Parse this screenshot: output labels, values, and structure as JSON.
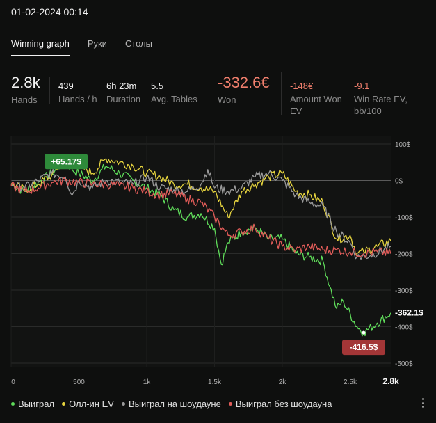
{
  "header": {
    "datetime": "01-02-2024 00:14"
  },
  "tabs": [
    {
      "label": "Winning graph",
      "active": true
    },
    {
      "label": "Руки",
      "active": false
    },
    {
      "label": "Столы",
      "active": false
    }
  ],
  "stats": {
    "hands": {
      "value": "2.8k",
      "label": "Hands"
    },
    "hands_per_hour": {
      "value": "439",
      "label": "Hands / h"
    },
    "duration": {
      "value": "6h 23m",
      "label": "Duration"
    },
    "avg_tables": {
      "value": "5.5",
      "label": "Avg. Tables"
    },
    "won": {
      "value": "-332.6€",
      "label": "Won"
    },
    "amount_won_ev": {
      "value": "-148€",
      "label_1": "Amount Won",
      "label_2": "EV"
    },
    "win_rate_ev": {
      "value": "-9.1",
      "label_1": "Win Rate EV,",
      "label_2": "bb/100"
    }
  },
  "colors": {
    "won": "#5fdc5a",
    "allin_ev": "#e5d33e",
    "showdown": "#9a9a9a",
    "non_showdown": "#e05b58",
    "negative_text": "#f07f6d"
  },
  "chart_data": {
    "type": "line",
    "xlim": [
      0,
      2800
    ],
    "ylim": [
      -500,
      100
    ],
    "x_ticks": [
      0,
      500,
      1000,
      1500,
      2000,
      2500
    ],
    "x_tick_labels": [
      "0",
      "500",
      "1k",
      "1.5k",
      "2k",
      "2.5k"
    ],
    "x_end_label": "2.8k",
    "y_ticks": [
      100,
      0,
      -100,
      -200,
      -300,
      -400,
      -500
    ],
    "y_tick_labels": [
      "100$",
      "0$",
      "-100$",
      "-200$",
      "-300$",
      "-400$",
      "-500$"
    ],
    "grid": true,
    "legend_position": "bottom",
    "series": [
      {
        "name": "Выиграл",
        "color": "#5fdc5a",
        "points": [
          [
            0,
            -10
          ],
          [
            100,
            -30
          ],
          [
            200,
            -5
          ],
          [
            300,
            20
          ],
          [
            400,
            55
          ],
          [
            450,
            30
          ],
          [
            500,
            20
          ],
          [
            600,
            0
          ],
          [
            700,
            40
          ],
          [
            800,
            20
          ],
          [
            900,
            0
          ],
          [
            1000,
            -20
          ],
          [
            1100,
            -40
          ],
          [
            1200,
            -80
          ],
          [
            1300,
            -100
          ],
          [
            1400,
            -90
          ],
          [
            1500,
            -130
          ],
          [
            1550,
            -230
          ],
          [
            1600,
            -170
          ],
          [
            1700,
            -140
          ],
          [
            1800,
            -130
          ],
          [
            1900,
            -160
          ],
          [
            2000,
            -160
          ],
          [
            2100,
            -200
          ],
          [
            2200,
            -210
          ],
          [
            2300,
            -220
          ],
          [
            2350,
            -290
          ],
          [
            2400,
            -350
          ],
          [
            2450,
            -330
          ],
          [
            2550,
            -400
          ],
          [
            2600,
            -416
          ],
          [
            2700,
            -390
          ],
          [
            2800,
            -362
          ]
        ]
      },
      {
        "name": "Олл-ин EV",
        "color": "#e5d33e",
        "points": [
          [
            0,
            -10
          ],
          [
            100,
            -25
          ],
          [
            200,
            -10
          ],
          [
            300,
            15
          ],
          [
            400,
            60
          ],
          [
            500,
            40
          ],
          [
            600,
            20
          ],
          [
            700,
            60
          ],
          [
            800,
            50
          ],
          [
            900,
            40
          ],
          [
            1000,
            20
          ],
          [
            1100,
            10
          ],
          [
            1200,
            -10
          ],
          [
            1300,
            -10
          ],
          [
            1400,
            -20
          ],
          [
            1500,
            -30
          ],
          [
            1600,
            -100
          ],
          [
            1700,
            -30
          ],
          [
            1800,
            -10
          ],
          [
            1900,
            10
          ],
          [
            2000,
            20
          ],
          [
            2100,
            -30
          ],
          [
            2200,
            -40
          ],
          [
            2300,
            -60
          ],
          [
            2400,
            -160
          ],
          [
            2500,
            -150
          ],
          [
            2550,
            -200
          ],
          [
            2600,
            -195
          ],
          [
            2700,
            -180
          ],
          [
            2800,
            -165
          ]
        ]
      },
      {
        "name": "Выиграл на шоудауне",
        "color": "#9a9a9a",
        "points": [
          [
            0,
            -10
          ],
          [
            100,
            -20
          ],
          [
            200,
            0
          ],
          [
            300,
            20
          ],
          [
            400,
            10
          ],
          [
            450,
            -40
          ],
          [
            500,
            0
          ],
          [
            600,
            -20
          ],
          [
            700,
            0
          ],
          [
            800,
            -5
          ],
          [
            900,
            -10
          ],
          [
            1000,
            10
          ],
          [
            1100,
            -20
          ],
          [
            1200,
            -25
          ],
          [
            1300,
            -30
          ],
          [
            1400,
            -10
          ],
          [
            1450,
            30
          ],
          [
            1500,
            -20
          ],
          [
            1600,
            -30
          ],
          [
            1700,
            -20
          ],
          [
            1800,
            10
          ],
          [
            1900,
            20
          ],
          [
            2000,
            0
          ],
          [
            2100,
            -40
          ],
          [
            2200,
            -60
          ],
          [
            2300,
            -70
          ],
          [
            2400,
            -140
          ],
          [
            2500,
            -170
          ],
          [
            2550,
            -210
          ],
          [
            2650,
            -205
          ],
          [
            2800,
            -180
          ]
        ]
      },
      {
        "name": "Выиграл без шоудауна",
        "color": "#e05b58",
        "points": [
          [
            0,
            -15
          ],
          [
            100,
            -30
          ],
          [
            200,
            -20
          ],
          [
            300,
            -5
          ],
          [
            400,
            0
          ],
          [
            500,
            -5
          ],
          [
            600,
            -10
          ],
          [
            700,
            -10
          ],
          [
            800,
            -15
          ],
          [
            900,
            -20
          ],
          [
            1000,
            -30
          ],
          [
            1100,
            -40
          ],
          [
            1200,
            -35
          ],
          [
            1300,
            -50
          ],
          [
            1400,
            -60
          ],
          [
            1500,
            -100
          ],
          [
            1600,
            -150
          ],
          [
            1700,
            -140
          ],
          [
            1800,
            -130
          ],
          [
            1900,
            -160
          ],
          [
            2000,
            -180
          ],
          [
            2100,
            -190
          ],
          [
            2200,
            -180
          ],
          [
            2300,
            -190
          ],
          [
            2400,
            -190
          ],
          [
            2500,
            -195
          ],
          [
            2600,
            -200
          ],
          [
            2700,
            -195
          ],
          [
            2800,
            -200
          ]
        ]
      }
    ],
    "annotations": [
      {
        "label": "+65.17$",
        "x": 380,
        "y": 65.17,
        "color": "#2e8a3a"
      },
      {
        "label": "-416.5$",
        "x": 2600,
        "y": -416.5,
        "color": "#a33637"
      }
    ],
    "end_value_label": "-362.1$"
  },
  "legend": [
    {
      "label": "Выиграл",
      "color": "#5fdc5a"
    },
    {
      "label": "Олл-ин EV",
      "color": "#e5d33e"
    },
    {
      "label": "Выиграл на шоудауне",
      "color": "#9a9a9a"
    },
    {
      "label": "Выиграл без шоудауна",
      "color": "#e05b58"
    }
  ]
}
